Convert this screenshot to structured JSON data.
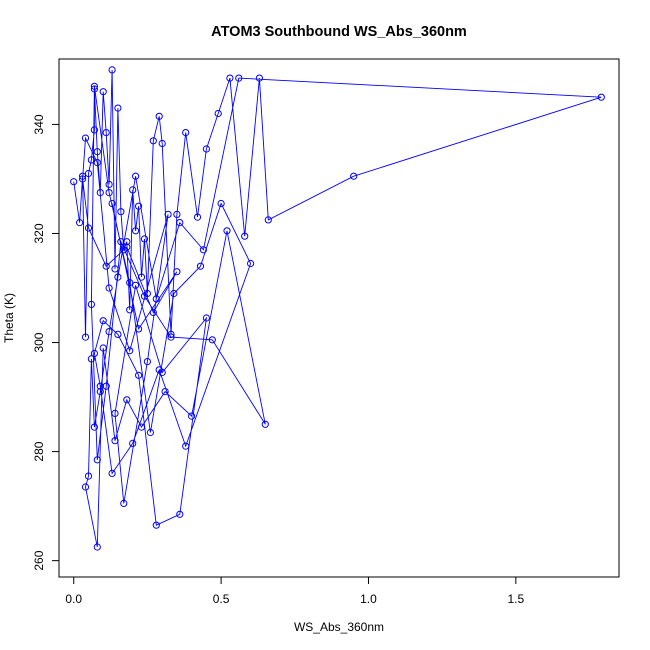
{
  "chart_data": {
    "type": "scatter",
    "title": "ATOM3 Southbound WS_Abs_360nm",
    "xlabel": "WS_Abs_360nm",
    "ylabel": "Theta (K)",
    "xlim": [
      -0.05,
      1.85
    ],
    "ylim": [
      257,
      352
    ],
    "x_ticks": [
      0,
      0.5,
      1,
      1.5
    ],
    "x_tick_labels": [
      "0.0",
      "0.5",
      "1.0",
      "1.5"
    ],
    "y_ticks": [
      260,
      280,
      300,
      320,
      340
    ],
    "y_tick_labels": [
      "260",
      "280",
      "300",
      "320",
      "340"
    ],
    "grid": false,
    "legend": "none",
    "color": "#0000ff",
    "connected": true,
    "series": [
      {
        "x": [
          0.0,
          0.02,
          0.03,
          0.04,
          0.05,
          0.06,
          0.07,
          0.07,
          0.08,
          0.09,
          0.1,
          0.11,
          0.12,
          0.13,
          0.14,
          0.15,
          0.16,
          0.17,
          0.18,
          0.19,
          0.2,
          0.21,
          0.22,
          0.23,
          0.24,
          0.25,
          0.27,
          0.29,
          0.3,
          0.33,
          0.35,
          0.38,
          0.42,
          0.45,
          0.49,
          0.53,
          0.58,
          0.63,
          0.66,
          0.95,
          1.79,
          0.56,
          0.44,
          0.36,
          0.28,
          0.21,
          0.15,
          0.12,
          0.09,
          0.07,
          0.06,
          0.05,
          0.04,
          0.08,
          0.1,
          0.14,
          0.18,
          0.23,
          0.31,
          0.4,
          0.52,
          0.65,
          0.47,
          0.33,
          0.24,
          0.16,
          0.11,
          0.08,
          0.06,
          0.07,
          0.12,
          0.19,
          0.26,
          0.34,
          0.43,
          0.5,
          0.6,
          0.38,
          0.29,
          0.2,
          0.13,
          0.09,
          0.07,
          0.1,
          0.15,
          0.22,
          0.28,
          0.36,
          0.45,
          0.3,
          0.21,
          0.14,
          0.17,
          0.25,
          0.32,
          0.19,
          0.12,
          0.08,
          0.04,
          0.03,
          0.05,
          0.11,
          0.18,
          0.27,
          0.35,
          0.22,
          0.13
        ],
        "y": [
          329.5,
          322,
          330.5,
          301,
          331,
          333.5,
          339,
          346.5,
          335,
          327.5,
          346,
          338.5,
          329,
          350,
          313.5,
          343,
          324,
          317,
          318.5,
          306,
          328,
          320.5,
          325,
          312,
          319,
          309,
          337,
          341.5,
          336.5,
          301.5,
          323.5,
          338.5,
          323,
          335.5,
          342,
          348.5,
          319.5,
          348.5,
          322.5,
          330.5,
          345,
          348.5,
          317,
          322,
          308,
          330.5,
          312,
          302,
          291,
          284.5,
          297,
          275.5,
          273.5,
          262.5,
          299,
          282,
          289.5,
          284.5,
          291,
          286.5,
          320.5,
          285,
          300.5,
          301,
          308.5,
          318.5,
          292,
          278.5,
          307,
          347,
          327.5,
          311,
          283.5,
          309,
          314,
          325.5,
          314.5,
          281,
          295,
          281.5,
          276,
          292,
          298,
          304,
          301.5,
          294,
          266.5,
          268.5,
          304.5,
          294.5,
          310.5,
          287,
          270.5,
          296.5,
          323.5,
          298.5,
          310,
          333,
          337.5,
          330,
          321,
          314,
          317.5,
          305.5,
          313,
          302.5,
          325.5
        ]
      }
    ]
  }
}
